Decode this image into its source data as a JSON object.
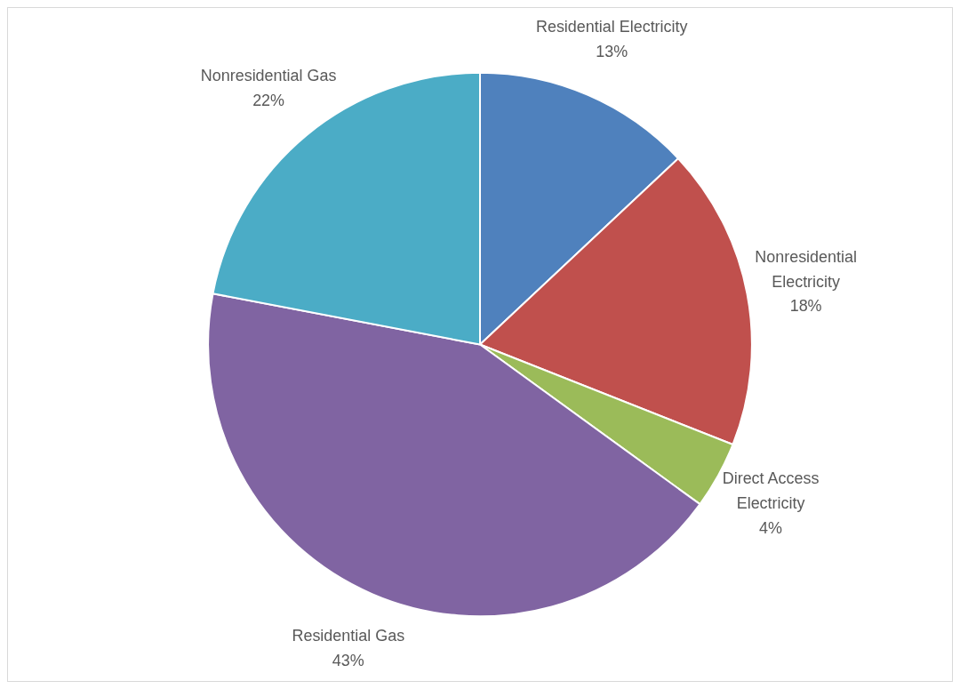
{
  "chart_data": {
    "type": "pie",
    "categories": [
      "Residential Electricity",
      "Nonresidential Electricity",
      "Direct Access Electricity",
      "Residential Gas",
      "Nonresidential Gas"
    ],
    "values": [
      13,
      18,
      4,
      43,
      22
    ],
    "colors": [
      "#4f81bd",
      "#c0504d",
      "#9bbb59",
      "#8064a2",
      "#4bacc6"
    ],
    "value_labels": [
      "13%",
      "18%",
      "4%",
      "43%",
      "22%"
    ],
    "legend": false
  }
}
